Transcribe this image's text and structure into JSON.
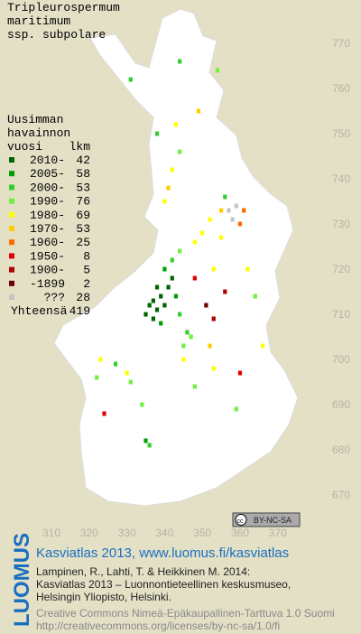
{
  "title": [
    "Tripleurospermum",
    "maritimum",
    "ssp. subpolare"
  ],
  "legend": {
    "heading": [
      "Uusimman",
      "havainnon"
    ],
    "period_header": "vuosi",
    "count_header": "lkm",
    "items": [
      {
        "label": "2010-",
        "count": 42,
        "color": "#006400"
      },
      {
        "label": "2005-",
        "count": 58,
        "color": "#00a000"
      },
      {
        "label": "2000-",
        "count": 53,
        "color": "#30d030"
      },
      {
        "label": "1990-",
        "count": 76,
        "color": "#70f040"
      },
      {
        "label": "1980-",
        "count": 69,
        "color": "#ffff00"
      },
      {
        "label": "1970-",
        "count": 53,
        "color": "#ffcc00"
      },
      {
        "label": "1960-",
        "count": 25,
        "color": "#ff6a00"
      },
      {
        "label": "1950-",
        "count": 8,
        "color": "#e00000"
      },
      {
        "label": "1900-",
        "count": 5,
        "color": "#b00000"
      },
      {
        "label": "-1899",
        "count": 2,
        "color": "#6a0000"
      },
      {
        "label": "???",
        "count": 28,
        "color": "#c4c4c4"
      }
    ],
    "total_label": "Yhteensä",
    "total": 419
  },
  "map": {
    "xticks": [
      310,
      320,
      330,
      340,
      350,
      360,
      370
    ],
    "yticks": [
      670,
      680,
      690,
      700,
      710,
      720,
      730,
      740,
      750,
      760,
      770
    ],
    "points": [
      [
        336,
        712,
        0
      ],
      [
        337,
        713,
        0
      ],
      [
        338,
        711,
        0
      ],
      [
        339,
        714,
        0
      ],
      [
        340,
        712,
        0
      ],
      [
        338,
        716,
        0
      ],
      [
        341,
        716,
        0
      ],
      [
        337,
        709,
        0
      ],
      [
        335,
        710,
        0
      ],
      [
        342,
        718,
        0
      ],
      [
        340,
        720,
        1
      ],
      [
        343,
        714,
        1
      ],
      [
        339,
        708,
        1
      ],
      [
        344,
        710,
        2
      ],
      [
        346,
        706,
        2
      ],
      [
        347,
        705,
        3
      ],
      [
        345,
        703,
        3
      ],
      [
        342,
        722,
        2
      ],
      [
        344,
        724,
        3
      ],
      [
        348,
        726,
        4
      ],
      [
        350,
        728,
        4
      ],
      [
        352,
        731,
        4
      ],
      [
        355,
        733,
        5
      ],
      [
        340,
        735,
        4
      ],
      [
        341,
        738,
        5
      ],
      [
        342,
        742,
        4
      ],
      [
        344,
        746,
        3
      ],
      [
        338,
        750,
        2
      ],
      [
        343,
        752,
        4
      ],
      [
        349,
        755,
        5
      ],
      [
        357,
        733,
        10
      ],
      [
        358,
        731,
        10
      ],
      [
        359,
        734,
        10
      ],
      [
        360,
        730,
        6
      ],
      [
        361,
        733,
        6
      ],
      [
        356,
        736,
        2
      ],
      [
        355,
        727,
        4
      ],
      [
        353,
        720,
        4
      ],
      [
        348,
        718,
        7
      ],
      [
        356,
        715,
        8
      ],
      [
        351,
        712,
        9
      ],
      [
        353,
        709,
        8
      ],
      [
        331,
        762,
        2
      ],
      [
        344,
        766,
        2
      ],
      [
        354,
        764,
        3
      ],
      [
        330,
        697,
        4
      ],
      [
        331,
        695,
        3
      ],
      [
        327,
        699,
        2
      ],
      [
        323,
        700,
        4
      ],
      [
        322,
        696,
        3
      ],
      [
        324,
        688,
        7
      ],
      [
        334,
        690,
        3
      ],
      [
        336,
        681,
        2
      ],
      [
        335,
        682,
        1
      ],
      [
        348,
        694,
        3
      ],
      [
        353,
        698,
        4
      ],
      [
        360,
        697,
        7
      ],
      [
        359,
        689,
        3
      ],
      [
        366,
        703,
        4
      ],
      [
        364,
        714,
        3
      ],
      [
        362,
        720,
        4
      ],
      [
        352,
        703,
        5
      ],
      [
        345,
        700,
        4
      ]
    ]
  },
  "badge": "BY-NC-SA",
  "footer": {
    "logo": "LUOMUS",
    "site": "Kasviatlas 2013, www.luomus.fi/kasviatlas",
    "citation": [
      "Lampinen, R., Lahti, T. & Heikkinen M. 2014:",
      "Kasviatlas 2013 – Luonnontieteellinen keskusmuseo,",
      "Helsingin Yliopisto, Helsinki."
    ],
    "license": [
      "Creative Commons Nimeä-Epäkaupallinen-Tarttuva 1.0 Suomi",
      "http://creativecommons.org/licenses/by-nc-sa/1.0/fi"
    ]
  }
}
